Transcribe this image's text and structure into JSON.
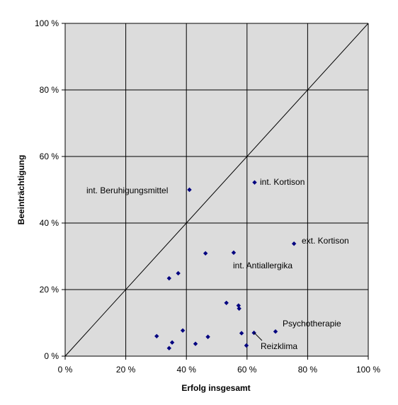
{
  "chart_data": {
    "type": "scatter",
    "title": "",
    "xlabel": "Erfolg insgesamt",
    "ylabel": "Beeinträchtigung",
    "xlim": [
      0,
      100
    ],
    "ylim": [
      0,
      100
    ],
    "x_ticks": [
      "0 %",
      "20 %",
      "40 %",
      "60 %",
      "80 %",
      "100 %"
    ],
    "y_ticks": [
      "0 %",
      "20 %",
      "40 %",
      "60 %",
      "80 %",
      "100 %"
    ],
    "grid": true,
    "legend": "none",
    "diagonal_reference_line": true,
    "colors": {
      "plot_background": "#dcdcdc",
      "marker": "#000080",
      "grid": "#000000"
    },
    "points": [
      {
        "x": 41,
        "y": 50
      },
      {
        "x": 62.5,
        "y": 52.2
      },
      {
        "x": 75.5,
        "y": 33.8
      },
      {
        "x": 46.3,
        "y": 30.9
      },
      {
        "x": 55.6,
        "y": 31.1
      },
      {
        "x": 34.3,
        "y": 23.4
      },
      {
        "x": 37.3,
        "y": 24.9
      },
      {
        "x": 53.2,
        "y": 16.0
      },
      {
        "x": 57.2,
        "y": 15.2
      },
      {
        "x": 57.4,
        "y": 14.3
      },
      {
        "x": 30.2,
        "y": 6.0
      },
      {
        "x": 34.3,
        "y": 2.4
      },
      {
        "x": 35.3,
        "y": 4.1
      },
      {
        "x": 38.8,
        "y": 7.7
      },
      {
        "x": 43.0,
        "y": 3.7
      },
      {
        "x": 47.1,
        "y": 5.8
      },
      {
        "x": 58.2,
        "y": 6.9
      },
      {
        "x": 59.8,
        "y": 3.2
      },
      {
        "x": 62.3,
        "y": 7.0
      },
      {
        "x": 69.4,
        "y": 7.4
      }
    ],
    "annotations": [
      {
        "text": "int. Beruhigungsmittel"
      },
      {
        "text": "int. Kortison"
      },
      {
        "text": "ext. Kortison"
      },
      {
        "text": "int. Antiallergika"
      },
      {
        "text": "Psychotherapie"
      },
      {
        "text": "Reizklima"
      }
    ]
  }
}
